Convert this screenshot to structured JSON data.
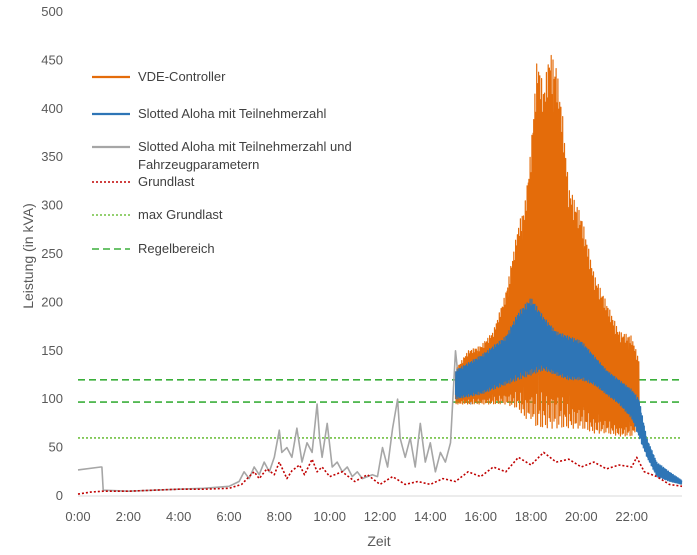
{
  "chart_data": {
    "type": "line",
    "xlabel": "Zeit",
    "ylabel": "Leistung (in kVA)",
    "ylim": [
      0,
      500
    ],
    "yticks": [
      0,
      50,
      100,
      150,
      200,
      250,
      300,
      350,
      400,
      450,
      500
    ],
    "xlim_hours": [
      0,
      24
    ],
    "xticks": [
      {
        "label": "0:00",
        "hour": 0
      },
      {
        "label": "2:00",
        "hour": 2
      },
      {
        "label": "4:00",
        "hour": 4
      },
      {
        "label": "6:00",
        "hour": 6
      },
      {
        "label": "8:00",
        "hour": 8
      },
      {
        "label": "10:00",
        "hour": 10
      },
      {
        "label": "12:00",
        "hour": 12
      },
      {
        "label": "14:00",
        "hour": 14
      },
      {
        "label": "16:00",
        "hour": 16
      },
      {
        "label": "18:00",
        "hour": 18
      },
      {
        "label": "20:00",
        "hour": 20
      },
      {
        "label": "22:00",
        "hour": 22
      }
    ],
    "grid": false,
    "legend_position": "top-left",
    "series": [
      {
        "name": "VDE-Controller",
        "color": "#E46C0A",
        "style": "solid",
        "oscillating": true,
        "x": [
          15.0,
          15.5,
          16.0,
          16.5,
          17.0,
          17.5,
          17.75,
          18.0,
          18.25,
          18.5,
          18.75,
          19.0,
          19.25,
          19.5,
          20.0,
          20.5,
          21.0,
          21.5,
          22.0,
          22.3
        ],
        "low": [
          95,
          95,
          95,
          95,
          95,
          90,
          80,
          80,
          70,
          70,
          70,
          70,
          70,
          70,
          70,
          65,
          65,
          62,
          62,
          70
        ],
        "high": [
          130,
          150,
          155,
          170,
          210,
          280,
          300,
          360,
          455,
          420,
          460,
          445,
          395,
          320,
          290,
          230,
          200,
          170,
          165,
          140
        ]
      },
      {
        "name": "Slotted Aloha mit Teilnehmerzahl",
        "color": "#2E75B6",
        "style": "solid",
        "oscillating": true,
        "x": [
          15.0,
          16.0,
          17.0,
          17.5,
          18.0,
          18.5,
          19.0,
          19.5,
          20.0,
          20.5,
          21.0,
          21.5,
          22.0,
          22.3,
          22.6,
          23.0,
          23.5,
          24.0
        ],
        "low": [
          100,
          105,
          115,
          120,
          125,
          130,
          125,
          120,
          120,
          115,
          105,
          95,
          80,
          60,
          40,
          20,
          15,
          12
        ],
        "high": [
          130,
          145,
          165,
          190,
          205,
          185,
          170,
          165,
          160,
          145,
          130,
          120,
          110,
          100,
          60,
          35,
          25,
          16
        ]
      },
      {
        "name": "Slotted Aloha mit Teilnehmerzahl und Fahrzeugparametern",
        "color": "#A6A6A6",
        "style": "solid",
        "x": [
          0,
          0.9,
          0.95,
          1.0,
          2,
          3,
          4,
          5,
          6,
          6.4,
          6.6,
          6.8,
          7.0,
          7.2,
          7.4,
          7.6,
          7.8,
          8.0,
          8.1,
          8.3,
          8.5,
          8.7,
          8.9,
          9.1,
          9.3,
          9.5,
          9.6,
          9.7,
          9.9,
          10.1,
          10.3,
          10.5,
          10.7,
          10.9,
          11.1,
          11.3,
          11.5,
          11.7,
          11.9,
          12.1,
          12.3,
          12.5,
          12.7,
          12.8,
          12.9,
          13.0,
          13.2,
          13.4,
          13.6,
          13.8,
          14.0,
          14.2,
          14.4,
          14.6,
          14.8,
          15.0,
          15.2,
          15.4,
          15.6,
          15.8,
          16.0,
          16.2,
          16.4,
          16.6,
          16.8,
          17.0,
          17.2,
          17.4,
          17.6,
          17.8,
          18.0,
          18.2,
          18.4,
          18.6,
          18.8,
          19.0,
          19.2,
          19.4,
          19.6,
          19.8,
          20.0,
          20.2,
          20.4,
          20.6,
          20.8,
          21.0,
          21.2,
          21.4,
          21.6,
          21.8,
          22.0,
          22.2,
          22.4,
          22.6,
          22.8,
          23.0,
          23.2,
          23.4,
          23.6,
          23.8,
          24.0
        ],
        "y": [
          27,
          30,
          30,
          6,
          5,
          6,
          7,
          8,
          10,
          15,
          25,
          18,
          30,
          22,
          35,
          25,
          40,
          68,
          45,
          50,
          40,
          70,
          35,
          55,
          45,
          95,
          60,
          40,
          75,
          30,
          35,
          25,
          30,
          20,
          25,
          18,
          20,
          22,
          20,
          50,
          30,
          70,
          100,
          60,
          50,
          40,
          60,
          30,
          75,
          35,
          55,
          25,
          45,
          35,
          55,
          150,
          100,
          120,
          95,
          140,
          110,
          150,
          100,
          160,
          110,
          170,
          150,
          180,
          160,
          200,
          150,
          175,
          140,
          165,
          145,
          155,
          140,
          165,
          130,
          150,
          135,
          140,
          130,
          125,
          120,
          115,
          110,
          105,
          100,
          95,
          90,
          80,
          70,
          55,
          40,
          30,
          25,
          20,
          15,
          14,
          12
        ]
      },
      {
        "name": "Grundlast",
        "color": "#C00000",
        "style": "dotted",
        "x": [
          0,
          0.5,
          1,
          2,
          3,
          4,
          5,
          6,
          6.5,
          6.8,
          7.0,
          7.2,
          7.5,
          7.8,
          8.0,
          8.3,
          8.5,
          8.8,
          9.0,
          9.3,
          9.5,
          9.7,
          10.0,
          10.5,
          11.0,
          11.5,
          12.0,
          12.5,
          13.0,
          13.5,
          14.0,
          14.5,
          15.0,
          15.5,
          16.0,
          16.5,
          17.0,
          17.5,
          18.0,
          18.5,
          19.0,
          19.5,
          20.0,
          20.5,
          21.0,
          21.5,
          22.0,
          22.2,
          22.5,
          23.0,
          23.5,
          24.0
        ],
        "y": [
          2,
          4,
          5,
          5,
          6,
          7,
          7,
          8,
          12,
          20,
          25,
          18,
          28,
          22,
          35,
          18,
          26,
          32,
          22,
          38,
          25,
          30,
          20,
          25,
          15,
          22,
          12,
          20,
          12,
          15,
          12,
          18,
          15,
          25,
          20,
          30,
          25,
          40,
          32,
          45,
          35,
          38,
          30,
          35,
          28,
          32,
          30,
          40,
          25,
          20,
          12,
          10
        ]
      },
      {
        "name": "max Grundlast",
        "color": "#70C040",
        "style": "dotted",
        "constant": 60
      },
      {
        "name": "Regelbereich",
        "color": "#3BAF3B",
        "style": "dashed",
        "constant": [
          97,
          120
        ]
      }
    ]
  }
}
